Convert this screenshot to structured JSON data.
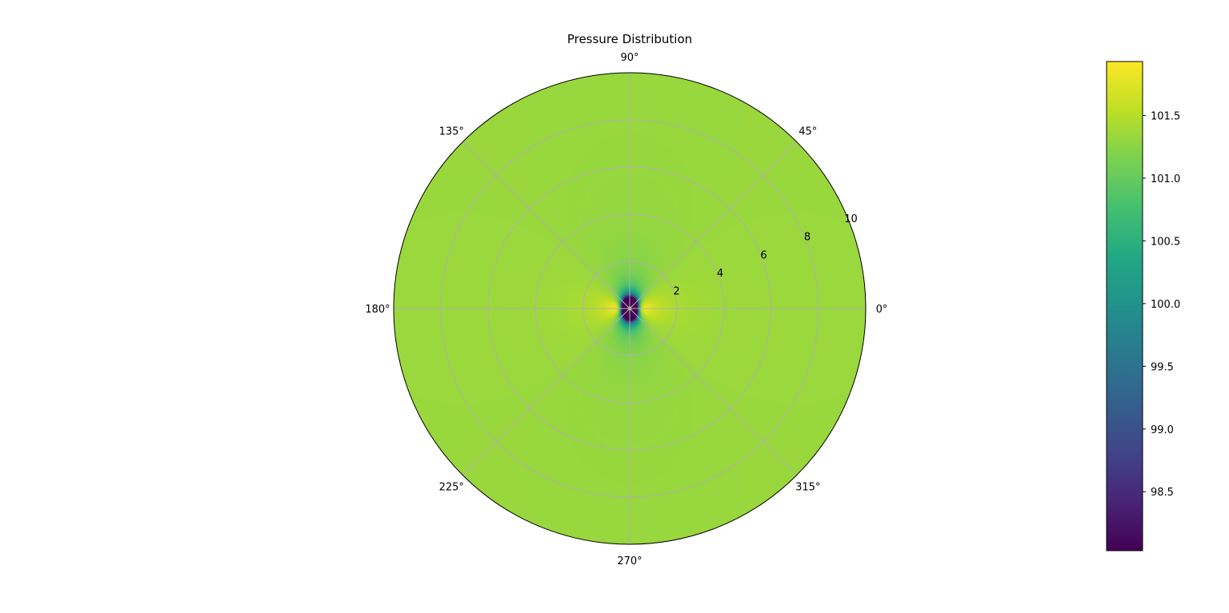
{
  "chart_data": {
    "type": "heatmap",
    "projection": "polar",
    "title": "Pressure Distribution",
    "angular_ticks": [
      "0°",
      "45°",
      "90°",
      "135°",
      "180°",
      "225°",
      "270°",
      "315°"
    ],
    "angular_tick_values_deg": [
      0,
      45,
      90,
      135,
      180,
      225,
      270,
      315
    ],
    "radial_ticks": [
      "2",
      "4",
      "6",
      "8",
      "10"
    ],
    "radial_tick_values": [
      2,
      4,
      6,
      8,
      10
    ],
    "rlim": [
      0,
      10
    ],
    "grid": true,
    "colormap": "viridis",
    "colorbar": {
      "ticks": [
        "98.5",
        "99.0",
        "99.5",
        "100.0",
        "100.5",
        "101.0",
        "101.5"
      ],
      "tick_values": [
        98.5,
        99.0,
        99.5,
        100.0,
        100.5,
        101.0,
        101.5
      ],
      "vmin": 98.03,
      "vmax": 101.93,
      "placement": "right"
    },
    "field": {
      "description_type": "doublet flow pressure field",
      "background_value": 101.33,
      "min_value": 98.03,
      "max_value": 101.93,
      "min_locations": [
        {
          "r": 0.5,
          "theta_deg": 90
        },
        {
          "r": 0.5,
          "theta_deg": 270
        }
      ],
      "max_locations": [
        {
          "r": 0.5,
          "theta_deg": 0
        },
        {
          "r": 0.5,
          "theta_deg": 180
        }
      ]
    },
    "colors": {
      "grid": "#b0b0b0",
      "axis": "#000000"
    }
  }
}
